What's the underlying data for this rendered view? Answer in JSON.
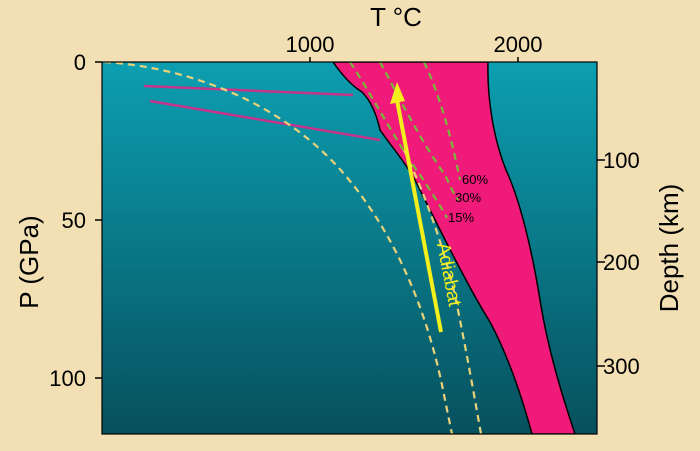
{
  "top_axis": {
    "label": "T °C",
    "ticks": [
      {
        "value": 1000,
        "label": "1000"
      },
      {
        "value": 2000,
        "label": "2000"
      }
    ]
  },
  "left_axis": {
    "label": "P (GPa)",
    "ticks": [
      {
        "value": 0,
        "label": "0"
      },
      {
        "value": 50,
        "label": "50"
      },
      {
        "value": 100,
        "label": "100"
      }
    ]
  },
  "right_axis": {
    "label": "Depth (km)",
    "ticks": [
      {
        "value": 100,
        "label": "100"
      },
      {
        "value": 200,
        "label": "200"
      },
      {
        "value": 300,
        "label": "300"
      }
    ]
  },
  "melt_labels": [
    "60%",
    "30%",
    "15%"
  ],
  "adiabat_label": "Adiabat",
  "colors": {
    "background": "#f2e0b4",
    "plot_top": "#0c9fb1",
    "plot_bottom": "#07505d",
    "melt_region": "#ef1a7a",
    "dashed_curves": "#e8d27a",
    "melt_contours": "#78b83a",
    "adiabat": "#f2ef1c",
    "phase_lines": "#c4348a"
  }
}
